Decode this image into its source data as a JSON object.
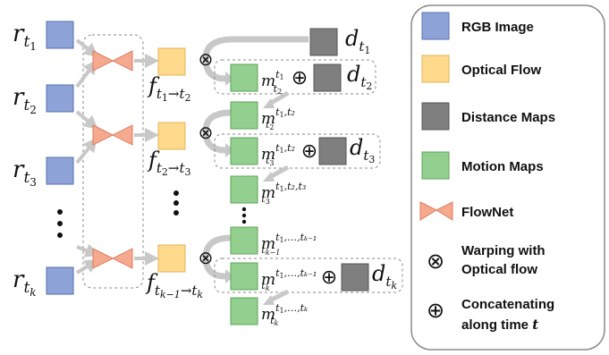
{
  "colors": {
    "rgb_image": "#8ea3d8",
    "optical_flow": "#ffd98c",
    "distance_map": "#7f7f7f",
    "motion_map": "#93cf8e",
    "flownet": "#f5a98f",
    "arrow": "#c8c8c8",
    "dashed": "#8a8a8a"
  },
  "legend": {
    "rgb_image": "RGB Image",
    "optical_flow": "Optical Flow",
    "distance_maps": "Distance Maps",
    "motion_maps": "Motion Maps",
    "flownet": "FlowNet",
    "warping_line1": "Warping with",
    "warping_line2": "Optical flow",
    "concat_line1": "Concatenating",
    "concat_line2": "along time",
    "concat_var": "t"
  },
  "symbols": {
    "otimes": "⊗",
    "oplus": "⊕",
    "vdots": "⋮"
  },
  "inputs": [
    {
      "base": "r",
      "sub": "t",
      "subsub": "1"
    },
    {
      "base": "r",
      "sub": "t",
      "subsub": "2"
    },
    {
      "base": "r",
      "sub": "t",
      "subsub": "3"
    },
    {
      "base": "r",
      "sub": "t",
      "subsub": "k"
    }
  ],
  "flows": [
    {
      "base": "f",
      "sub": "t",
      "sub_a": "1",
      "arrow": "→",
      "sub_t2": "t",
      "sub_b": "2"
    },
    {
      "base": "f",
      "sub": "t",
      "sub_a": "2",
      "arrow": "→",
      "sub_t2": "t",
      "sub_b": "3"
    },
    {
      "base": "f",
      "sub": "t",
      "sub_a": "k−1",
      "arrow": "→",
      "sub_t2": "t",
      "sub_b": "k"
    }
  ],
  "distance": [
    {
      "base": "d",
      "sub": "t",
      "subsub": "1"
    },
    {
      "base": "d",
      "sub": "t",
      "subsub": "2"
    },
    {
      "base": "d",
      "sub": "t",
      "subsub": "3"
    },
    {
      "base": "d",
      "sub": "t",
      "subsub": "k"
    }
  ],
  "motion": [
    {
      "base": "m",
      "sup": "t",
      "sup_sub": "1",
      "sup_rest": "",
      "sub": "t",
      "sub_sub": "2"
    },
    {
      "base": "m",
      "sup": "t",
      "sup_sub": "1",
      "sup_rest": ",t₂",
      "sub": "t",
      "sub_sub": "2"
    },
    {
      "base": "m",
      "sup": "t",
      "sup_sub": "1",
      "sup_rest": ",t₂",
      "sub": "t",
      "sub_sub": "3"
    },
    {
      "base": "m",
      "sup": "t",
      "sup_sub": "1",
      "sup_rest": ",t₂,t₃",
      "sub": "t",
      "sub_sub": "3"
    },
    {
      "base": "m",
      "sup": "t",
      "sup_sub": "1",
      "sup_rest": ",…,tₖ₋₁",
      "sub": "t",
      "sub_sub": "k−1"
    },
    {
      "base": "m",
      "sup": "t",
      "sup_sub": "1",
      "sup_rest": ",…,tₖ₋₁",
      "sub": "t",
      "sub_sub": "k"
    },
    {
      "base": "m",
      "sup": "t",
      "sup_sub": "1",
      "sup_rest": ",…,tₖ",
      "sub": "t",
      "sub_sub": "k"
    }
  ]
}
